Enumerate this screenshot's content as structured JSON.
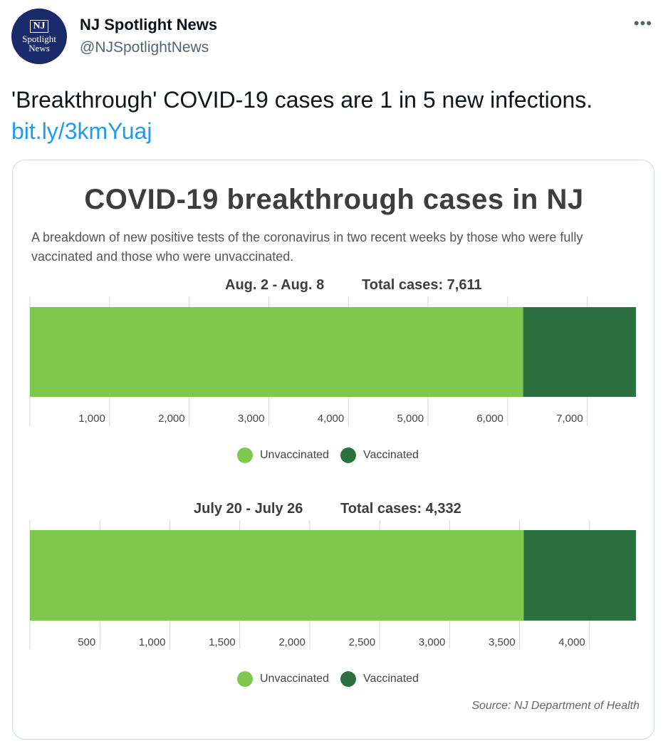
{
  "account": {
    "name": "NJ Spotlight News",
    "handle": "@NJSpotlightNews",
    "avatar_lines": [
      "NJ",
      "Spotlight",
      "News"
    ],
    "more_label": "•••"
  },
  "tweet": {
    "text": "'Breakthrough' COVID-19 cases are 1 in 5 new infections.",
    "link": "bit.ly/3kmYuaj"
  },
  "colors": {
    "unvaccinated": "#7ec84e",
    "vaccinated": "#2d7040",
    "grid": "#d6d6d6"
  },
  "card": {
    "title": "COVID-19 breakthrough cases in NJ",
    "subtitle": "A breakdown of new positive tests of the coronavirus in two recent weeks by those who were fully vaccinated and those who were unvaccinated.",
    "source": "Source: NJ Department of Health"
  },
  "chart_data": [
    {
      "type": "bar",
      "orientation": "horizontal-stacked",
      "date_range": "Aug. 2 - Aug. 8",
      "total_label": "Total cases: 7,611",
      "series": [
        {
          "name": "Unvaccinated",
          "value": 6194
        },
        {
          "name": "Vaccinated",
          "value": 1417
        }
      ],
      "xlim": [
        0,
        7611
      ],
      "ticks": [
        1000,
        2000,
        3000,
        4000,
        5000,
        6000,
        7000
      ],
      "tick_labels": [
        "1,000",
        "2,000",
        "3,000",
        "4,000",
        "5,000",
        "6,000",
        "7,000"
      ],
      "legend": [
        "Unvaccinated",
        "Vaccinated"
      ]
    },
    {
      "type": "bar",
      "orientation": "horizontal-stacked",
      "date_range": "July 20 - July 26",
      "total_label": "Total cases: 4,332",
      "series": [
        {
          "name": "Unvaccinated",
          "value": 3530
        },
        {
          "name": "Vaccinated",
          "value": 802
        }
      ],
      "xlim": [
        0,
        4332
      ],
      "ticks": [
        500,
        1000,
        1500,
        2000,
        2500,
        3000,
        3500,
        4000
      ],
      "tick_labels": [
        "500",
        "1,000",
        "1,500",
        "2,000",
        "2,500",
        "3,000",
        "3,500",
        "4,000"
      ],
      "legend": [
        "Unvaccinated",
        "Vaccinated"
      ]
    }
  ]
}
